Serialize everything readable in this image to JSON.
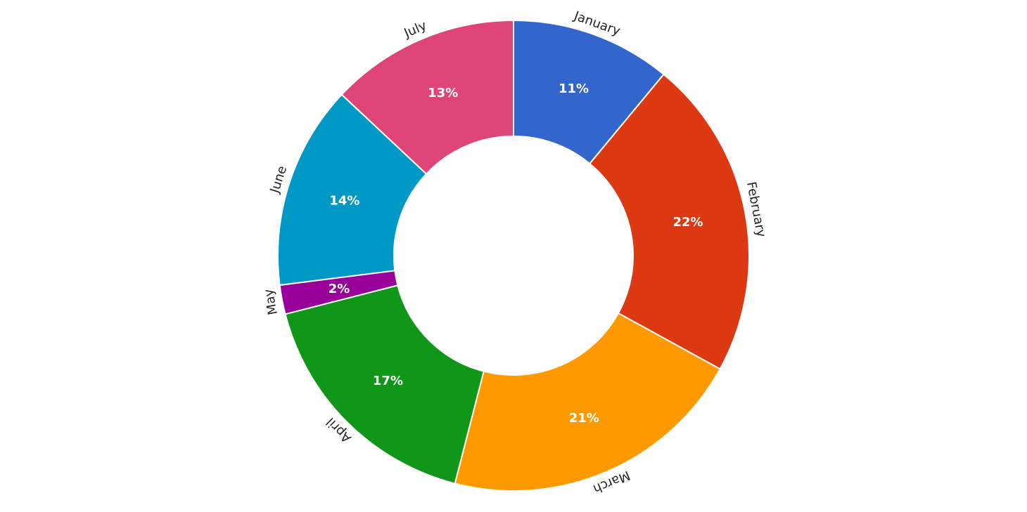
{
  "chart_data": {
    "type": "pie",
    "variant": "donut",
    "categories": [
      "January",
      "February",
      "March",
      "April",
      "May",
      "June",
      "July"
    ],
    "values": [
      11,
      22,
      21,
      17,
      2,
      14,
      13
    ],
    "data_labels": [
      "11%",
      "22%",
      "21%",
      "17%",
      "2%",
      "14%",
      "13%"
    ],
    "colors": [
      "#3366cc",
      "#dc3912",
      "#ff9900",
      "#109618",
      "#990099",
      "#0099c6",
      "#dd4477"
    ],
    "start_angle": "top",
    "direction": "clockwise",
    "labels_placement": "outside-curved"
  }
}
